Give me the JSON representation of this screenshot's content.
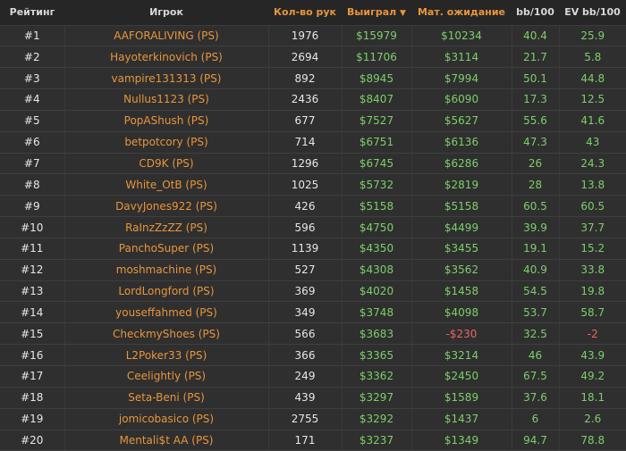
{
  "headers": {
    "rank": "Рейтинг",
    "player": "Игрок",
    "hands": "Кол-во рук",
    "won": "Выиграл",
    "ev": "Мат. ожидание",
    "bb": "bb/100",
    "evbb": "EV bb/100"
  },
  "sort_icon": "caret-down-icon",
  "colors": {
    "accent": "#e8953c",
    "positive": "#7ccf6a",
    "negative": "#e8646a"
  },
  "rows": [
    {
      "rank": "#1",
      "player": "AAFORALIVING (PS)",
      "hands": "1976",
      "won": "$15979",
      "ev": "$10234",
      "bb": "40.4",
      "evbb": "25.9"
    },
    {
      "rank": "#2",
      "player": "Hayoterkinovich (PS)",
      "hands": "2694",
      "won": "$11706",
      "ev": "$3114",
      "bb": "21.7",
      "evbb": "5.8"
    },
    {
      "rank": "#3",
      "player": "vampire131313 (PS)",
      "hands": "892",
      "won": "$8945",
      "ev": "$7994",
      "bb": "50.1",
      "evbb": "44.8"
    },
    {
      "rank": "#4",
      "player": "Nullus1123 (PS)",
      "hands": "2436",
      "won": "$8407",
      "ev": "$6090",
      "bb": "17.3",
      "evbb": "12.5"
    },
    {
      "rank": "#5",
      "player": "PopAShush (PS)",
      "hands": "677",
      "won": "$7527",
      "ev": "$5627",
      "bb": "55.6",
      "evbb": "41.6"
    },
    {
      "rank": "#6",
      "player": "betpotcory (PS)",
      "hands": "714",
      "won": "$6751",
      "ev": "$6136",
      "bb": "47.3",
      "evbb": "43"
    },
    {
      "rank": "#7",
      "player": "CD9K (PS)",
      "hands": "1296",
      "won": "$6745",
      "ev": "$6286",
      "bb": "26",
      "evbb": "24.3"
    },
    {
      "rank": "#8",
      "player": "White_OtB (PS)",
      "hands": "1025",
      "won": "$5732",
      "ev": "$2819",
      "bb": "28",
      "evbb": "13.8"
    },
    {
      "rank": "#9",
      "player": "DavyJones922 (PS)",
      "hands": "426",
      "won": "$5158",
      "ev": "$5158",
      "bb": "60.5",
      "evbb": "60.5"
    },
    {
      "rank": "#10",
      "player": "RaInzZzZZ (PS)",
      "hands": "596",
      "won": "$4750",
      "ev": "$4499",
      "bb": "39.9",
      "evbb": "37.7"
    },
    {
      "rank": "#11",
      "player": "PanchoSuper (PS)",
      "hands": "1139",
      "won": "$4350",
      "ev": "$3455",
      "bb": "19.1",
      "evbb": "15.2"
    },
    {
      "rank": "#12",
      "player": "moshmachine (PS)",
      "hands": "527",
      "won": "$4308",
      "ev": "$3562",
      "bb": "40.9",
      "evbb": "33.8"
    },
    {
      "rank": "#13",
      "player": "LordLongford (PS)",
      "hands": "369",
      "won": "$4020",
      "ev": "$1458",
      "bb": "54.5",
      "evbb": "19.8"
    },
    {
      "rank": "#14",
      "player": "youseffahmed (PS)",
      "hands": "349",
      "won": "$3748",
      "ev": "$4098",
      "bb": "53.7",
      "evbb": "58.7"
    },
    {
      "rank": "#15",
      "player": "CheckmyShoes (PS)",
      "hands": "566",
      "won": "$3683",
      "ev": "-$230",
      "bb": "32.5",
      "evbb": "-2"
    },
    {
      "rank": "#16",
      "player": "L2Poker33 (PS)",
      "hands": "366",
      "won": "$3365",
      "ev": "$3214",
      "bb": "46",
      "evbb": "43.9"
    },
    {
      "rank": "#17",
      "player": "Ceelightly (PS)",
      "hands": "249",
      "won": "$3362",
      "ev": "$2450",
      "bb": "67.5",
      "evbb": "49.2"
    },
    {
      "rank": "#18",
      "player": "Seta-Beni (PS)",
      "hands": "439",
      "won": "$3297",
      "ev": "$1589",
      "bb": "37.6",
      "evbb": "18.1"
    },
    {
      "rank": "#19",
      "player": "jomicobasico (PS)",
      "hands": "2755",
      "won": "$3292",
      "ev": "$1437",
      "bb": "6",
      "evbb": "2.6"
    },
    {
      "rank": "#20",
      "player": "Mentali$t AA (PS)",
      "hands": "171",
      "won": "$3237",
      "ev": "$1349",
      "bb": "94.7",
      "evbb": "78.8"
    }
  ]
}
